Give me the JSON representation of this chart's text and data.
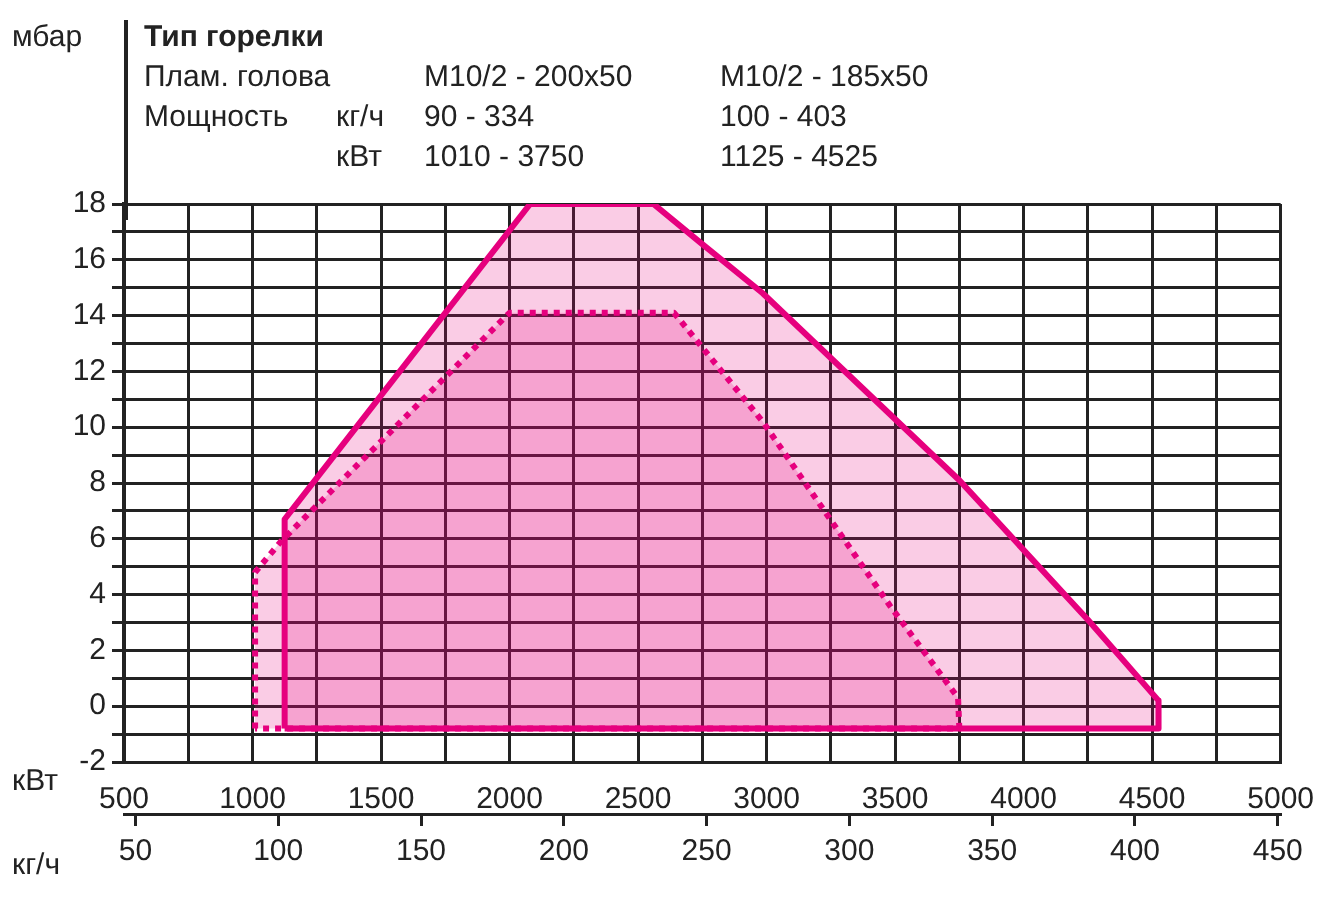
{
  "chart_data": {
    "type": "area",
    "title": "Тип горелки",
    "annotations": [
      "Плам. голова",
      "M10/2 - 200x50",
      "M10/2 - 185x50",
      "Мощность",
      "кг/ч",
      "90 - 334",
      "100 - 403",
      "кВт",
      "1010 - 3750",
      "1125 - 4525"
    ],
    "ylabel": "мбар",
    "xlabel": "кВт",
    "x2label": "кг/ч",
    "series": [
      {
        "color": "#e6007e",
        "line_style": "dotted",
        "x": [
          1010,
          1010,
          1110,
          2000,
          2640,
          2985,
          3480,
          3745,
          3750,
          1010
        ],
        "values": [
          -0.8,
          4.8,
          5.9,
          14.1,
          14.1,
          10.2,
          3.6,
          0.3,
          -0.8,
          -0.8
        ]
      },
      {
        "color": "#e6007e",
        "line_style": "solid",
        "x": [
          1125,
          1125,
          2080,
          2560,
          2745,
          2985,
          3750,
          4250,
          4525,
          4525,
          1125
        ],
        "values": [
          -0.8,
          6.7,
          18,
          18,
          16.6,
          14.8,
          8.1,
          3.1,
          0.2,
          -0.8,
          -0.8
        ]
      }
    ],
    "xlim": [
      500,
      5000
    ],
    "xticks": [
      500,
      {
        "value": 750,
        "label": null
      },
      1000,
      {
        "value": 1250,
        "label": null
      },
      1500,
      {
        "value": 1750,
        "label": null
      },
      2000,
      {
        "value": 2250,
        "label": null
      },
      2500,
      {
        "value": 2750,
        "label": null
      },
      3000,
      {
        "value": 3250,
        "label": null
      },
      3500,
      {
        "value": 3750,
        "label": null
      },
      4000,
      {
        "value": 4250,
        "label": null
      },
      4500,
      {
        "value": 4750,
        "label": null
      },
      5000
    ],
    "x2lim": [
      46,
      451
    ],
    "x2ticks": [
      50,
      100,
      150,
      200,
      250,
      300,
      350,
      400,
      450
    ],
    "ylim": [
      -2,
      18
    ],
    "yticks": [
      -2,
      {
        "value": -1,
        "label": null
      },
      0,
      {
        "value": 1,
        "label": null
      },
      2,
      {
        "value": 3,
        "label": null
      },
      4,
      {
        "value": 5,
        "label": null
      },
      6,
      {
        "value": 7,
        "label": null
      },
      8,
      {
        "value": 9,
        "label": null
      },
      10,
      {
        "value": 11,
        "label": null
      },
      12,
      {
        "value": 13,
        "label": null
      },
      14,
      {
        "value": 15,
        "label": null
      },
      16,
      {
        "value": 17,
        "label": null
      },
      18
    ],
    "grid": true,
    "legend": false,
    "marker": "none"
  }
}
